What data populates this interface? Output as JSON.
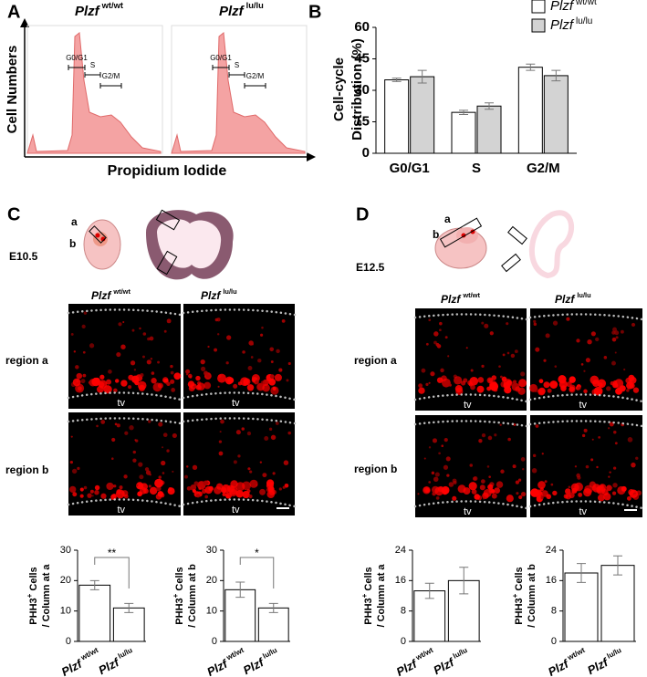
{
  "panels": {
    "A": {
      "letter": "A",
      "titles": [
        {
          "gene": "Plzf",
          "sup": "wt/wt"
        },
        {
          "gene": "Plzf",
          "sup": "lu/lu"
        }
      ],
      "ylabel": "Cell Numbers",
      "xlabel": "Propidium Iodide",
      "gates": [
        "G0/G1",
        "S",
        "G2/M"
      ]
    },
    "B": {
      "letter": "B"
    },
    "C": {
      "letter": "C",
      "stage": "E10.5",
      "sites": [
        "a",
        "b"
      ],
      "columns": [
        {
          "gene": "Plzf",
          "sup": "wt/wt"
        },
        {
          "gene": "Plzf",
          "sup": "lu/lu"
        }
      ],
      "rows": [
        "region a",
        "region b"
      ],
      "tv": "tv"
    },
    "D": {
      "letter": "D",
      "stage": "E12.5",
      "sites": [
        "a",
        "b"
      ],
      "columns": [
        {
          "gene": "Plzf",
          "sup": "wt/wt"
        },
        {
          "gene": "Plzf",
          "sup": "lu/lu"
        }
      ],
      "rows": [
        "region a",
        "region b"
      ],
      "tv": "tv"
    }
  },
  "chart_data": [
    {
      "type": "grouped-bar",
      "ylabel": [
        "Cell-cycle",
        "Distribution (%)"
      ],
      "categories": [
        "G0/G1",
        "S",
        "G2/M"
      ],
      "series": [
        {
          "name": "Plzf",
          "name_sup": "wt/wt",
          "color": "#ffffff",
          "values": [
            35,
            19.5,
            41
          ],
          "errors": [
            0.8,
            1,
            1.5
          ]
        },
        {
          "name": "Plzf",
          "name_sup": "lu/lu",
          "color": "#d3d3d3",
          "values": [
            36.5,
            22.5,
            37
          ],
          "errors": [
            3,
            1.5,
            2.5
          ]
        }
      ],
      "ylim": [
        0,
        60
      ],
      "yticks": [
        0,
        15,
        30,
        45,
        60
      ],
      "legend": "top-right"
    },
    {
      "type": "bar",
      "ylabel": {
        "main": "PHH3",
        "sup": "+",
        "rest": " Cells",
        "line2": "/ Column at a"
      },
      "categories": [
        "Plzf",
        "Plzf"
      ],
      "category_sups": [
        "wt/wt",
        "lu/lu"
      ],
      "values": [
        18.5,
        11
      ],
      "errors": [
        1.5,
        1.5
      ],
      "color": "#ffffff",
      "ylim": [
        0,
        30
      ],
      "yticks": [
        0,
        10,
        20,
        30
      ],
      "significance": "**"
    },
    {
      "type": "bar",
      "ylabel": {
        "main": "PHH3",
        "sup": "+",
        "rest": " Cells",
        "line2": "/ Column at b"
      },
      "categories": [
        "Plzf",
        "Plzf"
      ],
      "category_sups": [
        "wt/wt",
        "lu/lu"
      ],
      "values": [
        17,
        11
      ],
      "errors": [
        2.5,
        1.5
      ],
      "color": "#ffffff",
      "ylim": [
        0,
        30
      ],
      "yticks": [
        0,
        10,
        20,
        30
      ],
      "significance": "*"
    },
    {
      "type": "bar",
      "ylabel": {
        "main": "PHH3",
        "sup": "+",
        "rest": " Cells",
        "line2": "/ Column at a"
      },
      "categories": [
        "Plzf",
        "Plzf"
      ],
      "category_sups": [
        "wt/wt",
        "lu/lu"
      ],
      "values": [
        13.3,
        16
      ],
      "errors": [
        2,
        3.5
      ],
      "color": "#ffffff",
      "ylim": [
        0,
        24
      ],
      "yticks": [
        0,
        8,
        16,
        24
      ]
    },
    {
      "type": "bar",
      "ylabel": {
        "main": "PHH3",
        "sup": "+",
        "rest": " Cells",
        "line2": "/ Column at b"
      },
      "categories": [
        "Plzf",
        "Plzf"
      ],
      "category_sups": [
        "wt/wt",
        "lu/lu"
      ],
      "values": [
        18,
        20
      ],
      "errors": [
        2.5,
        2.5
      ],
      "color": "#ffffff",
      "ylim": [
        0,
        24
      ],
      "yticks": [
        0,
        8,
        16,
        24
      ]
    }
  ]
}
